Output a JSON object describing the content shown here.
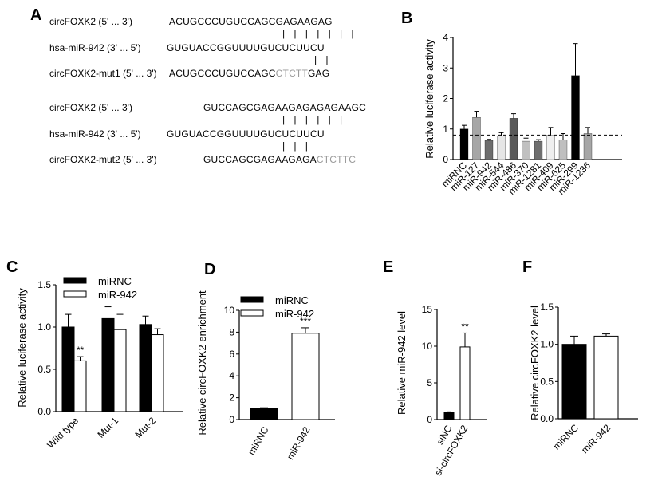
{
  "panels": {
    "A": "A",
    "B": "B",
    "C": "C",
    "D": "D",
    "E": "E",
    "F": "F"
  },
  "sequences": {
    "group1": [
      {
        "label": "circFOXK2 (5' ... 3')",
        "seq_plain": "ACUGCCCUGUCCAGCGAGAAGAG",
        "seq_mut": ""
      },
      {
        "label": "hsa-miR-942 (3' ... 5')",
        "seq_plain": "GUGUACCGGUUUUGUCUCUUCU",
        "seq_mut": ""
      },
      {
        "label": "circFOXK2-mut1 (5' ... 3')",
        "seq_plain": "ACUGCCCUGUCCAGC",
        "seq_mut": "CTCTT",
        "seq_tail": "GAG"
      }
    ],
    "group2": [
      {
        "label": "circFOXK2 (5' ... 3')",
        "seq_plain": "GUCCAGCGAGAAGAGAGAGAAGC",
        "seq_mut": ""
      },
      {
        "label": "hsa-miR-942 (3' ... 5')",
        "seq_plain": "GUGUACCGGUUUUGUCUCUUCU",
        "seq_mut": ""
      },
      {
        "label": "circFOXK2-mut2 (5' ... 3')",
        "seq_plain": "GUCCAGCGAGAAGAGA",
        "seq_mut": "CTCTTC",
        "seq_tail": ""
      }
    ]
  },
  "chart_data": [
    {
      "id": "B",
      "type": "bar",
      "ylabel": "Relative luciferase activity",
      "ylim": [
        0,
        4
      ],
      "yticks": [
        "0",
        "1",
        "2",
        "3",
        "4"
      ],
      "categories": [
        "miRNC",
        "miR-127",
        "miR-942",
        "miR-544",
        "miR-486",
        "miR-370",
        "miR-1281",
        "miR-409",
        "miR-625",
        "miR-299",
        "miR-1236"
      ],
      "values": [
        1.0,
        1.38,
        0.62,
        0.78,
        1.35,
        0.6,
        0.6,
        0.8,
        0.65,
        2.75,
        0.85
      ],
      "errors": [
        0.12,
        0.2,
        0.04,
        0.1,
        0.15,
        0.1,
        0.05,
        0.25,
        0.2,
        1.05,
        0.2
      ],
      "bar_colors": [
        "#000000",
        "#a6a6a6",
        "#6e6e6e",
        "#e6e6e6",
        "#5a5a5a",
        "#c0c0c0",
        "#6e6e6e",
        "#efefef",
        "#bfbfbf",
        "#000000",
        "#a6a6a6"
      ],
      "reference_line": 0.8
    },
    {
      "id": "C",
      "type": "bar",
      "ylabel": "Relative luciferase activity",
      "ylim": [
        0,
        1.5
      ],
      "yticks": [
        "0.0",
        "0.5",
        "1.0",
        "1.5"
      ],
      "categories": [
        "Wild type",
        "Mut-1",
        "Mut-2"
      ],
      "series": [
        {
          "name": "miRNC",
          "values": [
            1.0,
            1.1,
            1.03
          ],
          "errors": [
            0.15,
            0.14,
            0.1
          ],
          "color": "#000000"
        },
        {
          "name": "miR-942",
          "values": [
            0.6,
            0.97,
            0.91
          ],
          "errors": [
            0.05,
            0.18,
            0.07
          ],
          "color": "#ffffff"
        }
      ],
      "annotations": [
        {
          "category": "Wild type",
          "series": "miR-942",
          "text": "**"
        }
      ],
      "legend": "top-right"
    },
    {
      "id": "D",
      "type": "bar",
      "ylabel": "Relative circFOXK2 enrichment",
      "ylim": [
        0,
        10
      ],
      "yticks": [
        "0",
        "2",
        "4",
        "6",
        "8",
        "10"
      ],
      "categories": [
        "miRNC",
        "miR-942"
      ],
      "values": [
        1.0,
        7.9
      ],
      "errors": [
        0.08,
        0.5
      ],
      "bar_colors": [
        "#000000",
        "#ffffff"
      ],
      "annotations": [
        {
          "category": "miR-942",
          "text": "***"
        }
      ],
      "legend_entries": [
        "miRNC",
        "miR-942"
      ],
      "legend": "top-right"
    },
    {
      "id": "E",
      "type": "bar",
      "ylabel": "Relative miR-942 level",
      "ylim": [
        0,
        15
      ],
      "yticks": [
        "0",
        "5",
        "10",
        "15"
      ],
      "categories": [
        "siNC",
        "si-circFOXK2"
      ],
      "values": [
        1.0,
        9.9
      ],
      "errors": [
        0.05,
        1.9
      ],
      "bar_colors": [
        "#000000",
        "#ffffff"
      ],
      "annotations": [
        {
          "category": "si-circFOXK2",
          "text": "**"
        }
      ]
    },
    {
      "id": "F",
      "type": "bar",
      "ylabel": "Relative circFOXK2  level",
      "ylim": [
        0,
        1.5
      ],
      "yticks": [
        "0.0",
        "0.5",
        "1.0",
        "1.5"
      ],
      "categories": [
        "miRNC",
        "miR-942"
      ],
      "values": [
        1.0,
        1.11
      ],
      "errors": [
        0.11,
        0.03
      ],
      "bar_colors": [
        "#000000",
        "#ffffff"
      ]
    }
  ]
}
